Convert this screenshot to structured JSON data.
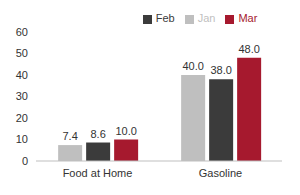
{
  "chart_data": {
    "type": "bar",
    "categories": [
      "Food at Home",
      "Gasoline"
    ],
    "series": [
      {
        "name": "Jan",
        "color": "#bfbfbf",
        "values": [
          7.4,
          40.0
        ],
        "value_labels": [
          "7.4",
          "40.0"
        ]
      },
      {
        "name": "Feb",
        "color": "#3b3b3b",
        "values": [
          8.6,
          38.0
        ],
        "value_labels": [
          "8.6",
          "38.0"
        ]
      },
      {
        "name": "Mar",
        "color": "#a6192e",
        "values": [
          10.0,
          48.0
        ],
        "value_labels": [
          "10.0",
          "48.0"
        ]
      }
    ],
    "ylim": [
      0,
      60
    ],
    "yticks": [
      0,
      10,
      20,
      30,
      40,
      50,
      60
    ],
    "grid": false,
    "legend": "top",
    "data_labels": true
  }
}
